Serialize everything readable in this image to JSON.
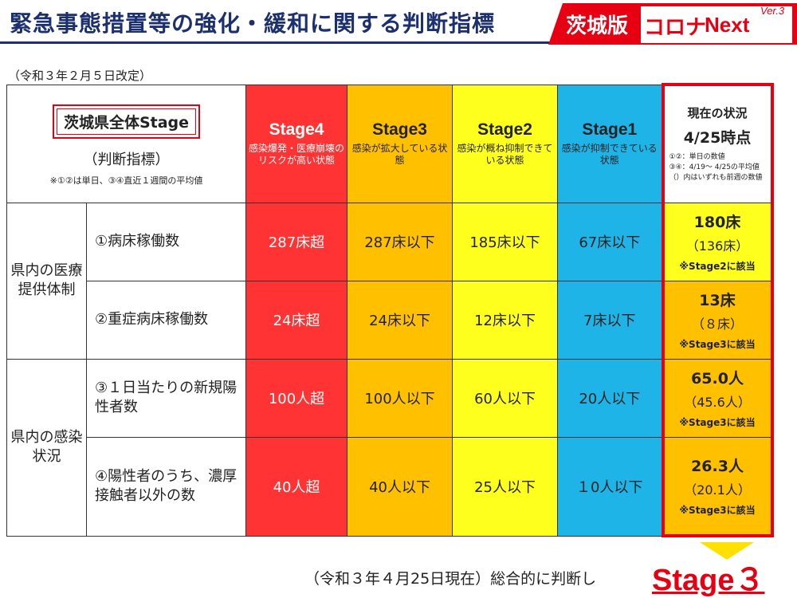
{
  "header": {
    "title": "緊急事態措置等の強化・緩和に関する判断指標",
    "brand_left": "茨城版",
    "brand_corona": "コロナ",
    "brand_next": "Next",
    "brand_ver": "Ver.3"
  },
  "revision": "（令和３年２月５日改定）",
  "corner": {
    "badge": "茨城県全体Stage",
    "sub": "（判断指標）",
    "note": "※①②は単日、③④直近１週間の平均値"
  },
  "stages": [
    {
      "name": "Stage4",
      "desc": "感染爆発・医療崩壊のリスクが高い状態"
    },
    {
      "name": "Stage3",
      "desc": "感染が拡大している状態"
    },
    {
      "name": "Stage2",
      "desc": "感染が概ね抑制できている状態"
    },
    {
      "name": "Stage1",
      "desc": "感染が抑制できている状態"
    }
  ],
  "current_header": {
    "title": "現在の状況",
    "date": "4/25時点",
    "note1": "①②：単日の数値",
    "note2": "③④：4/19～ 4/25の平均値",
    "note3": "（）内はいずれも前週の数値"
  },
  "groups": [
    {
      "label": "県内の医療提供体制"
    },
    {
      "label": "県内の感染状況"
    }
  ],
  "rows": [
    {
      "indicator": "①病床稼働数",
      "s4": "287床超",
      "s3": "287床以下",
      "s2": "185床以下",
      "s1": "67床以下",
      "current": "180床",
      "previous": "（136床）",
      "tag": "※Stage2に該当"
    },
    {
      "indicator": "②重症病床稼働数",
      "s4": "24床超",
      "s3": "24床以下",
      "s2": "12床以下",
      "s1": "7床以下",
      "current": "13床",
      "previous": "（８床）",
      "tag": "※Stage3に該当"
    },
    {
      "indicator": "③１日当たりの新規陽性者数",
      "s4": "100人超",
      "s3": "100人以下",
      "s2": "60人以下",
      "s1": "20人以下",
      "current": "65.0人",
      "previous": "（45.6人）",
      "tag": "※Stage3に該当"
    },
    {
      "indicator": "④陽性者のうち、濃厚接触者以外の数",
      "s4": "40人超",
      "s3": "40人以下",
      "s2": "25人以下",
      "s1": "１0人以下",
      "current": "26.3人",
      "previous": "（20.1人）",
      "tag": "※Stage3に該当"
    }
  ],
  "footer": {
    "text": "（令和３年４月25日現在）総合的に判断し",
    "stage": "Stage３"
  },
  "colors": {
    "stage4": "#ff3333",
    "stage3": "#ffc000",
    "stage2": "#ffff1e",
    "stage1": "#1eb4e8",
    "accent": "#e60012",
    "title": "#1c2f6e"
  }
}
